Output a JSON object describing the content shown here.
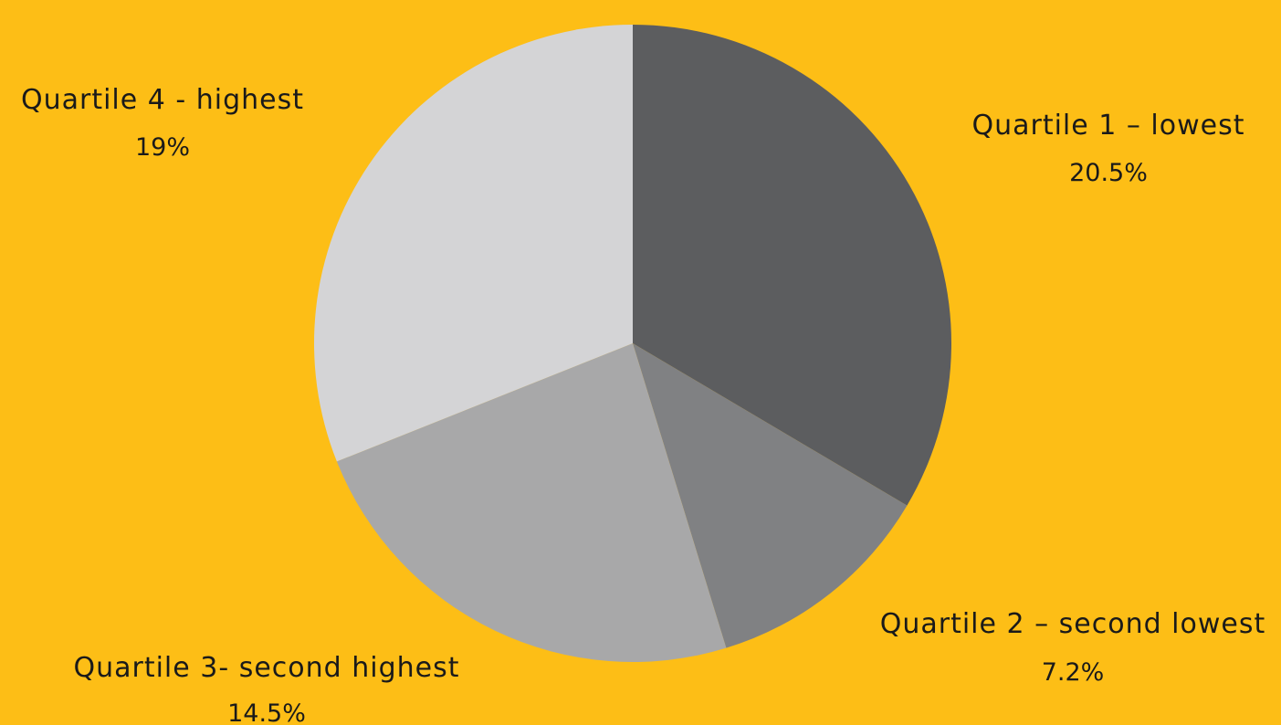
{
  "chart_data": {
    "type": "pie",
    "background": "#FDBE16",
    "start_angle_deg": 0,
    "direction": "clockwise",
    "slices": [
      {
        "label": "Quartile 1 – lowest",
        "value_text": "20.5%",
        "value": 20.5,
        "color": "#5C5D5F"
      },
      {
        "label": "Quartile 2 – second lowest",
        "value_text": "7.2%",
        "value": 7.2,
        "color": "#808183"
      },
      {
        "label": "Quartile 3- second highest",
        "value_text": "14.5%",
        "value": 14.5,
        "color": "#A8A8A9"
      },
      {
        "label": "Quartile 4 - highest",
        "value_text": "19%",
        "value": 19,
        "color": "#D4D4D6"
      }
    ]
  }
}
